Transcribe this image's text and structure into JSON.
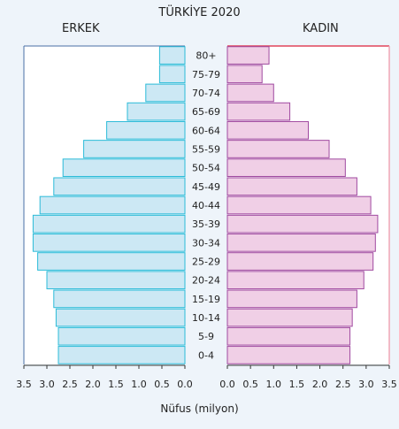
{
  "chart_data": {
    "type": "bar",
    "title": "TÜRKİYE 2020",
    "xlabel": "Nüfus (milyon)",
    "group_labels": {
      "male": "ERKEK",
      "female": "KADIN"
    },
    "categories": [
      "80+",
      "75-79",
      "70-74",
      "65-69",
      "60-64",
      "55-59",
      "50-54",
      "45-49",
      "40-44",
      "35-39",
      "30-34",
      "25-29",
      "20-24",
      "15-19",
      "10-14",
      "5-9",
      "0-4"
    ],
    "series": [
      {
        "name": "ERKEK",
        "color": "#cce8f4",
        "edge": "#2bbbd8",
        "values": [
          0.55,
          0.55,
          0.85,
          1.25,
          1.7,
          2.2,
          2.65,
          2.85,
          3.15,
          3.3,
          3.3,
          3.2,
          3.0,
          2.85,
          2.8,
          2.75,
          2.75
        ]
      },
      {
        "name": "KADIN",
        "color": "#f0cfe6",
        "edge": "#a04aa0",
        "values": [
          0.9,
          0.75,
          1.0,
          1.35,
          1.75,
          2.2,
          2.55,
          2.8,
          3.1,
          3.25,
          3.2,
          3.15,
          2.95,
          2.8,
          2.7,
          2.65,
          2.65
        ]
      }
    ],
    "male_ticks": [
      "3.5",
      "3.0",
      "2.5",
      "2.0",
      "1.5",
      "1.0",
      "0.5",
      "0.0"
    ],
    "female_ticks": [
      "0.0",
      "0.5",
      "1.0",
      "1.5",
      "2.0",
      "2.5",
      "3.0",
      "3.5"
    ],
    "xlim": [
      0,
      3.5
    ]
  }
}
